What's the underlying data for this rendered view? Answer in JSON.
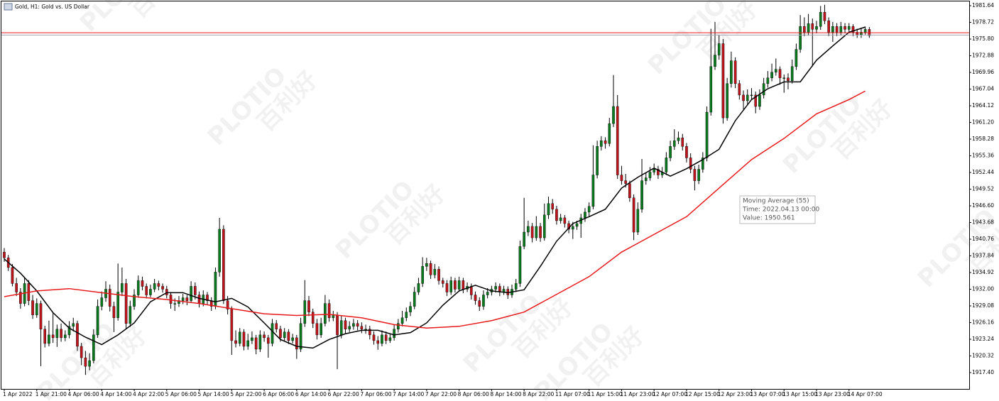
{
  "chart_data": {
    "type": "candlestick",
    "title": "Gold, H1:  Gold vs. US Dollar",
    "ylim": [
      1914.54,
      1982.39
    ],
    "yticks": [
      1981.64,
      1978.72,
      {
        "value": 1975.8,
        "label": "1975.80"
      },
      1972.88,
      1969.96,
      1967.04,
      1964.12,
      {
        "value": 1961.2,
        "label": "1961.20"
      },
      1958.28,
      1955.36,
      1952.44,
      1949.52,
      {
        "value": 1946.6,
        "label": "1946.60"
      },
      1943.68,
      1940.76,
      1937.84,
      1934.92,
      {
        "value": 1932,
        "label": "1932.00"
      },
      1929.08,
      1926.16,
      1923.24,
      1920.32,
      {
        "value": 1917.4,
        "label": "1917.40"
      }
    ],
    "xticks": [
      {
        "value": 0,
        "label": "1 Apr 2022"
      },
      {
        "value": 8,
        "label": "1 Apr 21:00"
      },
      {
        "value": 16,
        "label": "4 Apr 06:00"
      },
      {
        "value": 24,
        "label": "4 Apr 14:00"
      },
      {
        "value": 32,
        "label": "4 Apr 22:00"
      },
      {
        "value": 40,
        "label": "5 Apr 06:00"
      },
      {
        "value": 48,
        "label": "5 Apr 14:00"
      },
      {
        "value": 56,
        "label": "5 Apr 22:00"
      },
      {
        "value": 64,
        "label": "6 Apr 06:00"
      },
      {
        "value": 72,
        "label": "6 Apr 14:00"
      },
      {
        "value": 80,
        "label": "6 Apr 22:00"
      },
      {
        "value": 88,
        "label": "7 Apr 06:00"
      },
      {
        "value": 96,
        "label": "7 Apr 14:00"
      },
      {
        "value": 104,
        "label": "7 Apr 22:00"
      },
      {
        "value": 112,
        "label": "8 Apr 06:00"
      },
      {
        "value": 120,
        "label": "8 Apr 14:00"
      },
      {
        "value": 128,
        "label": "8 Apr 22:00"
      },
      {
        "value": 136,
        "label": "11 Apr 07:00"
      },
      {
        "value": 144,
        "label": "11 Apr 15:00"
      },
      {
        "value": 152,
        "label": "11 Apr 23:00"
      },
      {
        "value": 160,
        "label": "12 Apr 07:00"
      },
      {
        "value": 168,
        "label": "12 Apr 15:00"
      },
      {
        "value": 176,
        "label": "12 Apr 23:00"
      },
      {
        "value": 184,
        "label": "13 Apr 07:00"
      },
      {
        "value": 192,
        "label": "13 Apr 15:00"
      },
      {
        "value": 200,
        "label": "13 Apr 23:00"
      },
      {
        "value": 208,
        "label": "14 Apr 07:00"
      }
    ],
    "up_color": "#0a7a1e",
    "down_color": "#c0141c",
    "candles": {
      "open": [
        1938.5,
        1937.5,
        1935.8,
        1933.0,
        1931.5,
        1929.5,
        1933.0,
        1930.0,
        1927.5,
        1929.5,
        1925.0,
        1922.5,
        1924.0,
        1923.5,
        1925.0,
        1923.5,
        1924.0,
        1925.5,
        1926.0,
        1922.0,
        1920.0,
        1918.5,
        1919.5,
        1924.0,
        1929.0,
        1930.5,
        1932.0,
        1929.0,
        1927.0,
        1931.5,
        1933.0,
        1926.0,
        1929.0,
        1931.0,
        1933.5,
        1932.5,
        1931.0,
        1932.0,
        1933.0,
        1932.5,
        1932.0,
        1931.0,
        1929.5,
        1929.5,
        1930.0,
        1930.5,
        1930.0,
        1932.5,
        1931.0,
        1929.5,
        1931.0,
        1930.0,
        1929.0,
        1935.0,
        1942.5,
        1930.0,
        1928.5,
        1923.0,
        1922.5,
        1924.5,
        1922.0,
        1923.0,
        1923.5,
        1921.5,
        1924.0,
        1923.5,
        1922.5,
        1926.0,
        1925.0,
        1923.5,
        1924.5,
        1923.0,
        1923.5,
        1921.5,
        1926.0,
        1930.0,
        1928.0,
        1926.0,
        1924.0,
        1926.0,
        1929.5,
        1927.0,
        1927.5,
        1924.0,
        1926.5,
        1925.0,
        1925.5,
        1926.0,
        1925.5,
        1925.0,
        1925.0,
        1924.0,
        1923.0,
        1922.5,
        1924.0,
        1923.0,
        1923.5,
        1925.0,
        1926.0,
        1927.0,
        1928.0,
        1929.0,
        1931.5,
        1933.0,
        1936.0,
        1936.5,
        1934.5,
        1935.5,
        1933.5,
        1933.0,
        1931.5,
        1933.5,
        1932.0,
        1933.5,
        1932.0,
        1932.5,
        1931.0,
        1930.0,
        1929.0,
        1931.0,
        1931.5,
        1932.0,
        1932.5,
        1931.5,
        1932.0,
        1931.0,
        1932.0,
        1933.0,
        1939.5,
        1942.0,
        1943.0,
        1941.0,
        1943.0,
        1941.0,
        1945.0,
        1947.0,
        1946.0,
        1944.0,
        1944.5,
        1943.5,
        1942.5,
        1943.0,
        1943.5,
        1944.5,
        1945.5,
        1946.5,
        1952.0,
        1957.0,
        1958.0,
        1957.5,
        1961.0,
        1964.0,
        1952.0,
        1951.0,
        1950.5,
        1948.0,
        1942.0,
        1946.0,
        1951.0,
        1951.5,
        1952.5,
        1953.0,
        1952.0,
        1952.5,
        1955.0,
        1957.0,
        1958.0,
        1958.5,
        1957.0,
        1955.0,
        1953.0,
        1951.0,
        1953.0,
        1955.0,
        1963.0,
        1971.0,
        1973.0,
        1975.0,
        1962.0,
        1968.0,
        1972.0,
        1968.0,
        1966.0,
        1965.0,
        1966.0,
        1966.0,
        1964.0,
        1966.0,
        1968.0,
        1969.0,
        1970.0,
        1970.5,
        1969.0,
        1969.0,
        1968.5,
        1971.0,
        1974.0,
        1978.0,
        1977.0,
        1978.5,
        1977.5,
        1978.0,
        1980.5,
        1979.0,
        1977.0,
        1978.0,
        1977.0,
        1978.0,
        1977.5,
        1978.0,
        1977.0,
        1976.5,
        1977.0,
        1977.5
      ],
      "high": [
        1939.2,
        1938.0,
        1936.4,
        1934.0,
        1932.2,
        1934.2,
        1933.6,
        1931.0,
        1930.4,
        1930.0,
        1925.6,
        1926.5,
        1927.8,
        1925.8,
        1926.0,
        1924.8,
        1926.4,
        1927.0,
        1926.5,
        1922.6,
        1921.2,
        1920.8,
        1925.0,
        1930.2,
        1931.6,
        1933.4,
        1932.8,
        1929.8,
        1936.5,
        1935.8,
        1933.8,
        1930.0,
        1932.0,
        1934.4,
        1934.2,
        1933.0,
        1932.8,
        1933.8,
        1933.5,
        1933.0,
        1932.6,
        1931.5,
        1930.4,
        1930.8,
        1931.2,
        1931.0,
        1933.4,
        1933.2,
        1931.6,
        1931.8,
        1931.5,
        1930.6,
        1935.8,
        1944.5,
        1943.2,
        1930.8,
        1929.0,
        1924.8,
        1925.2,
        1925.0,
        1924.2,
        1924.6,
        1924.0,
        1924.8,
        1924.6,
        1924.0,
        1926.8,
        1926.6,
        1925.6,
        1925.2,
        1925.0,
        1924.2,
        1924.0,
        1927.0,
        1933.6,
        1930.8,
        1928.6,
        1926.8,
        1927.0,
        1931.0,
        1930.2,
        1928.2,
        1928.0,
        1927.4,
        1927.0,
        1926.4,
        1926.8,
        1926.6,
        1926.2,
        1925.8,
        1925.6,
        1924.6,
        1923.8,
        1924.8,
        1924.6,
        1924.2,
        1925.8,
        1926.8,
        1928.2,
        1928.8,
        1929.8,
        1932.4,
        1934.0,
        1937.6,
        1937.5,
        1937.0,
        1936.4,
        1936.0,
        1934.0,
        1933.6,
        1934.2,
        1934.0,
        1934.2,
        1934.0,
        1933.2,
        1933.0,
        1931.6,
        1930.6,
        1931.8,
        1932.2,
        1932.6,
        1933.2,
        1933.0,
        1932.6,
        1932.5,
        1932.8,
        1933.8,
        1940.5,
        1948.0,
        1944.0,
        1943.6,
        1944.8,
        1943.6,
        1947.0,
        1948.2,
        1947.8,
        1946.6,
        1945.2,
        1945.0,
        1944.0,
        1943.8,
        1944.0,
        1945.2,
        1946.2,
        1947.2,
        1957.2,
        1958.0,
        1958.8,
        1958.6,
        1962.0,
        1969.5,
        1966.0,
        1953.6,
        1952.2,
        1951.0,
        1948.6,
        1947.2,
        1954.8,
        1952.4,
        1953.4,
        1954.0,
        1953.6,
        1953.4,
        1956.0,
        1958.0,
        1960.0,
        1959.6,
        1959.2,
        1957.6,
        1955.8,
        1953.6,
        1953.8,
        1956.0,
        1964.0,
        1977.6,
        1978.8,
        1976.5,
        1975.8,
        1969.0,
        1973.6,
        1972.6,
        1968.6,
        1966.8,
        1967.0,
        1967.2,
        1966.6,
        1967.0,
        1969.0,
        1970.2,
        1971.5,
        1972.4,
        1971.0,
        1969.6,
        1969.8,
        1972.2,
        1975.0,
        1980.0,
        1979.6,
        1980.2,
        1979.4,
        1979.0,
        1981.6,
        1981.8,
        1979.6,
        1978.8,
        1978.6,
        1978.8,
        1978.6,
        1978.6,
        1978.4,
        1977.6,
        1977.8,
        1978.0,
        1977.9
      ],
      "low": [
        1936.8,
        1935.2,
        1932.5,
        1930.8,
        1928.6,
        1929.0,
        1929.2,
        1926.8,
        1927.0,
        1918.5,
        1921.8,
        1922.0,
        1922.6,
        1921.9,
        1922.8,
        1922.9,
        1923.4,
        1924.6,
        1921.2,
        1918.7,
        1917.0,
        1917.8,
        1919.0,
        1923.5,
        1928.3,
        1929.8,
        1928.1,
        1924.5,
        1926.5,
        1930.8,
        1925.0,
        1925.4,
        1928.4,
        1930.5,
        1931.8,
        1930.4,
        1930.6,
        1931.5,
        1931.8,
        1931.4,
        1930.4,
        1928.6,
        1928.2,
        1928.9,
        1929.4,
        1929.2,
        1929.6,
        1930.2,
        1928.8,
        1929.0,
        1929.2,
        1928.2,
        1928.5,
        1934.2,
        1929.4,
        1927.6,
        1920.5,
        1921.8,
        1922.0,
        1921.3,
        1921.4,
        1922.4,
        1920.6,
        1921.0,
        1922.8,
        1920.0,
        1922.0,
        1924.4,
        1922.8,
        1923.0,
        1922.4,
        1922.5,
        1919.8,
        1921.0,
        1925.4,
        1927.3,
        1925.2,
        1923.2,
        1923.5,
        1925.5,
        1926.3,
        1926.4,
        1918.0,
        1923.4,
        1924.3,
        1924.5,
        1924.9,
        1924.8,
        1924.3,
        1924.2,
        1923.2,
        1922.3,
        1921.4,
        1922.0,
        1922.4,
        1922.6,
        1923.0,
        1924.4,
        1925.5,
        1926.4,
        1927.3,
        1928.5,
        1931.0,
        1932.4,
        1935.2,
        1933.8,
        1933.9,
        1932.8,
        1932.3,
        1930.8,
        1931.0,
        1931.4,
        1931.6,
        1931.3,
        1931.5,
        1930.2,
        1929.3,
        1928.2,
        1928.4,
        1930.4,
        1930.9,
        1931.4,
        1930.8,
        1931.0,
        1930.3,
        1930.5,
        1931.5,
        1932.4,
        1939.0,
        1941.3,
        1940.2,
        1940.5,
        1940.3,
        1940.5,
        1944.3,
        1945.2,
        1943.3,
        1943.5,
        1942.8,
        1941.8,
        1940.8,
        1942.4,
        1941.0,
        1943.8,
        1944.8,
        1946.0,
        1951.4,
        1956.3,
        1956.6,
        1957.0,
        1960.4,
        1951.3,
        1950.3,
        1949.8,
        1947.3,
        1940.6,
        1941.5,
        1945.4,
        1950.3,
        1951.0,
        1952.0,
        1951.3,
        1951.5,
        1952.0,
        1954.4,
        1956.4,
        1957.4,
        1956.3,
        1954.2,
        1952.3,
        1949.3,
        1950.4,
        1952.4,
        1954.4,
        1962.4,
        1970.4,
        1972.2,
        1961.0,
        1961.5,
        1967.3,
        1967.2,
        1965.2,
        1963.5,
        1964.3,
        1965.2,
        1962.8,
        1963.4,
        1965.4,
        1967.3,
        1968.4,
        1969.4,
        1967.8,
        1966.4,
        1967.0,
        1968.0,
        1970.4,
        1973.4,
        1976.3,
        1976.4,
        1971.0,
        1976.8,
        1977.4,
        1978.4,
        1976.3,
        1975.3,
        1976.3,
        1976.4,
        1976.8,
        1976.8,
        1976.3,
        1976.0,
        1976.0,
        1976.6,
        1976.0
      ],
      "close": [
        1937.5,
        1935.8,
        1933.0,
        1931.5,
        1929.5,
        1933.0,
        1930.0,
        1927.5,
        1929.5,
        1925.0,
        1922.5,
        1924.0,
        1923.5,
        1925.0,
        1923.5,
        1924.0,
        1925.5,
        1926.0,
        1922.0,
        1920.0,
        1918.5,
        1919.5,
        1924.0,
        1929.0,
        1930.5,
        1932.0,
        1929.0,
        1927.0,
        1931.5,
        1933.0,
        1926.0,
        1929.0,
        1931.0,
        1933.5,
        1932.5,
        1931.0,
        1932.0,
        1933.0,
        1932.5,
        1932.0,
        1931.0,
        1929.5,
        1929.5,
        1930.0,
        1930.5,
        1930.0,
        1932.5,
        1931.0,
        1929.5,
        1931.0,
        1930.0,
        1929.0,
        1935.0,
        1942.5,
        1930.0,
        1928.5,
        1923.0,
        1922.5,
        1924.5,
        1922.0,
        1923.0,
        1923.5,
        1921.5,
        1924.0,
        1923.5,
        1922.5,
        1926.0,
        1925.0,
        1923.5,
        1924.5,
        1923.0,
        1923.5,
        1921.5,
        1926.0,
        1930.0,
        1928.0,
        1926.0,
        1924.0,
        1926.0,
        1929.5,
        1927.0,
        1927.5,
        1924.0,
        1926.5,
        1925.0,
        1925.5,
        1926.0,
        1925.5,
        1925.0,
        1925.0,
        1924.0,
        1923.0,
        1922.5,
        1924.0,
        1923.0,
        1923.5,
        1925.0,
        1926.0,
        1927.0,
        1928.0,
        1929.0,
        1931.5,
        1933.0,
        1936.0,
        1936.5,
        1934.5,
        1935.5,
        1933.5,
        1933.0,
        1931.5,
        1933.5,
        1932.0,
        1933.5,
        1932.0,
        1932.5,
        1931.0,
        1930.0,
        1929.0,
        1931.0,
        1931.5,
        1932.0,
        1932.5,
        1931.5,
        1932.0,
        1931.0,
        1932.0,
        1933.0,
        1939.5,
        1942.0,
        1943.0,
        1941.0,
        1943.0,
        1941.0,
        1945.0,
        1947.0,
        1946.0,
        1944.0,
        1944.5,
        1943.5,
        1942.5,
        1943.0,
        1943.5,
        1944.5,
        1945.5,
        1946.5,
        1952.0,
        1957.0,
        1958.0,
        1957.5,
        1961.0,
        1964.0,
        1952.0,
        1951.0,
        1950.5,
        1948.0,
        1942.0,
        1946.0,
        1951.0,
        1951.5,
        1952.5,
        1953.0,
        1952.0,
        1952.5,
        1955.0,
        1957.0,
        1958.0,
        1958.5,
        1957.0,
        1955.0,
        1953.0,
        1951.0,
        1953.0,
        1955.0,
        1963.0,
        1971.0,
        1973.0,
        1975.0,
        1962.0,
        1968.0,
        1972.0,
        1968.0,
        1966.0,
        1965.0,
        1966.0,
        1966.0,
        1964.0,
        1966.0,
        1968.0,
        1969.0,
        1970.0,
        1970.5,
        1969.0,
        1969.0,
        1968.5,
        1971.0,
        1974.0,
        1978.0,
        1977.0,
        1978.5,
        1977.5,
        1978.0,
        1980.5,
        1979.0,
        1977.0,
        1978.0,
        1977.0,
        1978.0,
        1977.5,
        1978.0,
        1977.0,
        1976.5,
        1977.0,
        1977.5,
        1976.4
      ]
    },
    "series": [
      {
        "color": "#000000",
        "x": [
          0,
          4,
          8,
          12,
          16,
          20,
          24,
          28,
          32,
          36,
          40,
          44,
          48,
          52,
          56,
          60,
          64,
          68,
          72,
          76,
          80,
          84,
          88,
          92,
          96,
          100,
          104,
          108,
          112,
          116,
          120,
          124,
          128,
          132,
          136,
          140,
          144,
          148,
          152,
          156,
          160,
          164,
          168,
          172,
          176,
          180,
          184,
          188,
          192,
          196,
          200,
          204,
          208,
          212
        ],
        "values": [
          1937.3,
          1934.8,
          1931.7,
          1927.9,
          1925.2,
          1923.6,
          1922.3,
          1924.0,
          1926.1,
          1929.8,
          1931.4,
          1931.4,
          1930.4,
          1929.8,
          1930.4,
          1928.9,
          1926.1,
          1923.2,
          1922.0,
          1921.7,
          1923.2,
          1924.2,
          1924.8,
          1924.8,
          1924.0,
          1924.4,
          1926.1,
          1929.2,
          1931.7,
          1932.7,
          1931.7,
          1931.4,
          1931.9,
          1936.0,
          1940.4,
          1943.5,
          1944.7,
          1946.0,
          1949.7,
          1951.6,
          1953.2,
          1951.8,
          1953.1,
          1954.7,
          1956.5,
          1961.5,
          1965.2,
          1967.1,
          1968.3,
          1968.3,
          1972.1,
          1974.6,
          1977.0,
          1977.9
        ]
      },
      {
        "color": "#e8191c",
        "x": [
          0,
          8,
          16,
          24,
          32,
          40,
          48,
          56,
          64,
          72,
          80,
          88,
          96,
          104,
          112,
          120,
          128,
          136,
          144,
          152,
          160,
          168,
          176,
          184,
          192,
          200,
          208,
          212
        ],
        "values": [
          1930.7,
          1931.7,
          1932.1,
          1931.4,
          1930.7,
          1930.2,
          1929.5,
          1928.6,
          1927.7,
          1927.4,
          1927.6,
          1927.0,
          1925.8,
          1925.2,
          1925.5,
          1926.5,
          1928.0,
          1931.1,
          1934.2,
          1938.5,
          1941.6,
          1944.7,
          1949.7,
          1954.7,
          1958.4,
          1962.7,
          1965.2,
          1966.7
        ]
      }
    ],
    "price_lines": [
      {
        "value": 1976.9,
        "color": "#e8191c"
      },
      {
        "value": 1976.5,
        "color": "#a0a0b0"
      }
    ],
    "tooltip": [
      "Moving Average (55)",
      "Time: 2022.04.13 00:00",
      "Value: 1950.561"
    ],
    "watermark": [
      "PLOTIO",
      "百利好"
    ]
  }
}
